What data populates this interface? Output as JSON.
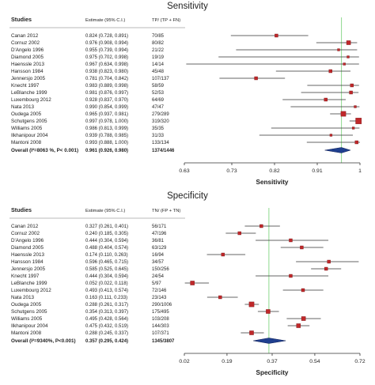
{
  "chart_data": [
    {
      "type": "forest",
      "title": "Sensitivity",
      "header": {
        "studies": "Studies",
        "estimate": "Estimate (95% C.I.)",
        "counts": "TP/ (TP + FN)"
      },
      "xlabel": "Sensitivity",
      "xlim": [
        0.63,
        1.0
      ],
      "xticks": [
        0.63,
        0.73,
        0.82,
        0.91,
        1
      ],
      "xtick_labels": [
        "0.63",
        "0.73",
        "0.82",
        "0.91",
        "1"
      ],
      "reference_line": 0.961,
      "studies": [
        {
          "name": "Canan 2012",
          "estimate_text": "0.824 (0.728, 0.891)",
          "counts": "70/85",
          "est": 0.824,
          "lo": 0.728,
          "hi": 0.891,
          "weight": 2
        },
        {
          "name": "Cornuz 2002",
          "estimate_text": "0.976 (0.908, 0.994)",
          "counts": "80/82",
          "est": 0.976,
          "lo": 0.908,
          "hi": 0.994,
          "weight": 3
        },
        {
          "name": "D'Angelo 1996",
          "estimate_text": "0.955 (0.739, 0.994)",
          "counts": "21/22",
          "est": 0.955,
          "lo": 0.739,
          "hi": 0.994,
          "weight": 1
        },
        {
          "name": "Diamond 2005",
          "estimate_text": "0.975 (0.702, 0.998)",
          "counts": "19/19",
          "est": 0.975,
          "lo": 0.702,
          "hi": 0.998,
          "weight": 1
        },
        {
          "name": "Haenssle 2013",
          "estimate_text": "0.967 (0.634, 0.998)",
          "counts": "14/14",
          "est": 0.967,
          "lo": 0.634,
          "hi": 0.998,
          "weight": 1
        },
        {
          "name": "Hansson 1984",
          "estimate_text": "0.938 (0.823, 0.980)",
          "counts": "45/48",
          "est": 0.938,
          "lo": 0.823,
          "hi": 0.98,
          "weight": 2
        },
        {
          "name": "Jennersjo 2005",
          "estimate_text": "0.781 (0.704, 0.842)",
          "counts": "107/137",
          "est": 0.781,
          "lo": 0.704,
          "hi": 0.842,
          "weight": 2
        },
        {
          "name": "Knecht 1997",
          "estimate_text": "0.983 (0.889, 0.998)",
          "counts": "58/59",
          "est": 0.983,
          "lo": 0.889,
          "hi": 0.998,
          "weight": 2
        },
        {
          "name": "LeBlanche 1999",
          "estimate_text": "0.981 (0.876, 0.997)",
          "counts": "52/53",
          "est": 0.981,
          "lo": 0.876,
          "hi": 0.997,
          "weight": 2
        },
        {
          "name": "Luxembourg 2012",
          "estimate_text": "0.928 (0.837, 0.970)",
          "counts": "64/69",
          "est": 0.928,
          "lo": 0.837,
          "hi": 0.97,
          "weight": 2
        },
        {
          "name": "Nata 2013",
          "estimate_text": "0.990 (0.854, 0.999)",
          "counts": "47/47",
          "est": 0.99,
          "lo": 0.854,
          "hi": 0.999,
          "weight": 1
        },
        {
          "name": "Oudega 2005",
          "estimate_text": "0.965 (0.937, 0.981)",
          "counts": "279/289",
          "est": 0.965,
          "lo": 0.937,
          "hi": 0.981,
          "weight": 4
        },
        {
          "name": "Schutgens 2005",
          "estimate_text": "0.997 (0.978, 1.000)",
          "counts": "319/320",
          "est": 0.997,
          "lo": 0.978,
          "hi": 1.0,
          "weight": 5
        },
        {
          "name": "Williams 2005",
          "estimate_text": "0.986 (0.813, 0.999)",
          "counts": "35/35",
          "est": 0.986,
          "lo": 0.813,
          "hi": 0.999,
          "weight": 1
        },
        {
          "name": "Ilkhanipour 2004",
          "estimate_text": "0.939 (0.788, 0.985)",
          "counts": "31/33",
          "est": 0.939,
          "lo": 0.788,
          "hi": 0.985,
          "weight": 1
        },
        {
          "name": "Mantoni 2008",
          "estimate_text": "0.993 (0.888, 1.000)",
          "counts": "133/134",
          "est": 0.993,
          "lo": 0.888,
          "hi": 1.0,
          "weight": 2
        }
      ],
      "overall": {
        "label": "Overall (I²=8063 %, P< 0.001)",
        "estimate_text": "0.961 (0.926, 0.980)",
        "counts": "1374/1446",
        "est": 0.961,
        "lo": 0.926,
        "hi": 0.98
      }
    },
    {
      "type": "forest",
      "title": "Specificity",
      "header": {
        "studies": "Studies",
        "estimate": "Estimate (95% C.I.)",
        "counts": "TN/ (FP + TN)"
      },
      "xlabel": "Specificity",
      "xlim": [
        0.02,
        0.72
      ],
      "xticks": [
        0.02,
        0.19,
        0.37,
        0.54,
        0.72
      ],
      "xtick_labels": [
        "0.02",
        "0.19",
        "0.37",
        "0.54",
        "0.72"
      ],
      "reference_line": 0.357,
      "studies": [
        {
          "name": "Canan 2012",
          "estimate_text": "0.327 (0.261, 0.401)",
          "counts": "56/171",
          "est": 0.327,
          "lo": 0.261,
          "hi": 0.401,
          "weight": 2
        },
        {
          "name": "Cornuz 2002",
          "estimate_text": "0.240 (0.185, 0.305)",
          "counts": "47/196",
          "est": 0.24,
          "lo": 0.185,
          "hi": 0.305,
          "weight": 2
        },
        {
          "name": "D'Angelo 1996",
          "estimate_text": "0.444 (0.304, 0.594)",
          "counts": "36/81",
          "est": 0.444,
          "lo": 0.304,
          "hi": 0.594,
          "weight": 2
        },
        {
          "name": "Diamond 2005",
          "estimate_text": "0.488 (0.404, 0.574)",
          "counts": "63/129",
          "est": 0.488,
          "lo": 0.404,
          "hi": 0.574,
          "weight": 2
        },
        {
          "name": "Haenssle 2013",
          "estimate_text": "0.174 (0.110, 0.263)",
          "counts": "16/94",
          "est": 0.174,
          "lo": 0.11,
          "hi": 0.263,
          "weight": 2
        },
        {
          "name": "Hansson 1984",
          "estimate_text": "0.596 (0.465, 0.715)",
          "counts": "34/57",
          "est": 0.596,
          "lo": 0.465,
          "hi": 0.715,
          "weight": 2
        },
        {
          "name": "Jennersjo 2005",
          "estimate_text": "0.585 (0.525, 0.645)",
          "counts": "150/256",
          "est": 0.585,
          "lo": 0.525,
          "hi": 0.645,
          "weight": 2
        },
        {
          "name": "Knecht 1997",
          "estimate_text": "0.444 (0.304, 0.594)",
          "counts": "24/54",
          "est": 0.444,
          "lo": 0.304,
          "hi": 0.594,
          "weight": 2
        },
        {
          "name": "LeBlanche 1999",
          "estimate_text": "0.052 (0.022, 0.118)",
          "counts": "5/97",
          "est": 0.052,
          "lo": 0.022,
          "hi": 0.118,
          "weight": 3
        },
        {
          "name": "Luxembourg 2012",
          "estimate_text": "0.493 (0.413, 0.574)",
          "counts": "72/146",
          "est": 0.493,
          "lo": 0.413,
          "hi": 0.574,
          "weight": 2
        },
        {
          "name": "Nata 2013",
          "estimate_text": "0.163 (0.111, 0.233)",
          "counts": "23/143",
          "est": 0.163,
          "lo": 0.111,
          "hi": 0.233,
          "weight": 2
        },
        {
          "name": "Oudega 2005",
          "estimate_text": "0.288 (0.261, 0.317)",
          "counts": "290/1006",
          "est": 0.288,
          "lo": 0.261,
          "hi": 0.317,
          "weight": 4
        },
        {
          "name": "Schutgens 2005",
          "estimate_text": "0.354 (0.313, 0.397)",
          "counts": "175/495",
          "est": 0.354,
          "lo": 0.313,
          "hi": 0.397,
          "weight": 3
        },
        {
          "name": "Williams 2005",
          "estimate_text": "0.495 (0.428, 0.564)",
          "counts": "103/208",
          "est": 0.495,
          "lo": 0.428,
          "hi": 0.564,
          "weight": 3
        },
        {
          "name": "Ilkhanipour 2004",
          "estimate_text": "0.475 (0.432, 0.519)",
          "counts": "144/303",
          "est": 0.475,
          "lo": 0.432,
          "hi": 0.519,
          "weight": 3
        },
        {
          "name": "Mantoni 2008",
          "estimate_text": "0.288 (0.245, 0.337)",
          "counts": "107/371",
          "est": 0.288,
          "lo": 0.245,
          "hi": 0.337,
          "weight": 3
        }
      ],
      "overall": {
        "label": "Overall (I²=9340%, P<0.001)",
        "estimate_text": "0.357 (0.295, 0.424)",
        "counts": "1345/3807",
        "est": 0.357,
        "lo": 0.295,
        "hi": 0.424
      }
    }
  ],
  "colors": {
    "marker": "#c0282a",
    "marker_stroke": "#7a1214",
    "ci_line": "#333333",
    "diamond": "#1f3f8f",
    "diamond_stroke": "#0e1e55",
    "reference_line": "#8fd98f",
    "axis": "#333333"
  }
}
